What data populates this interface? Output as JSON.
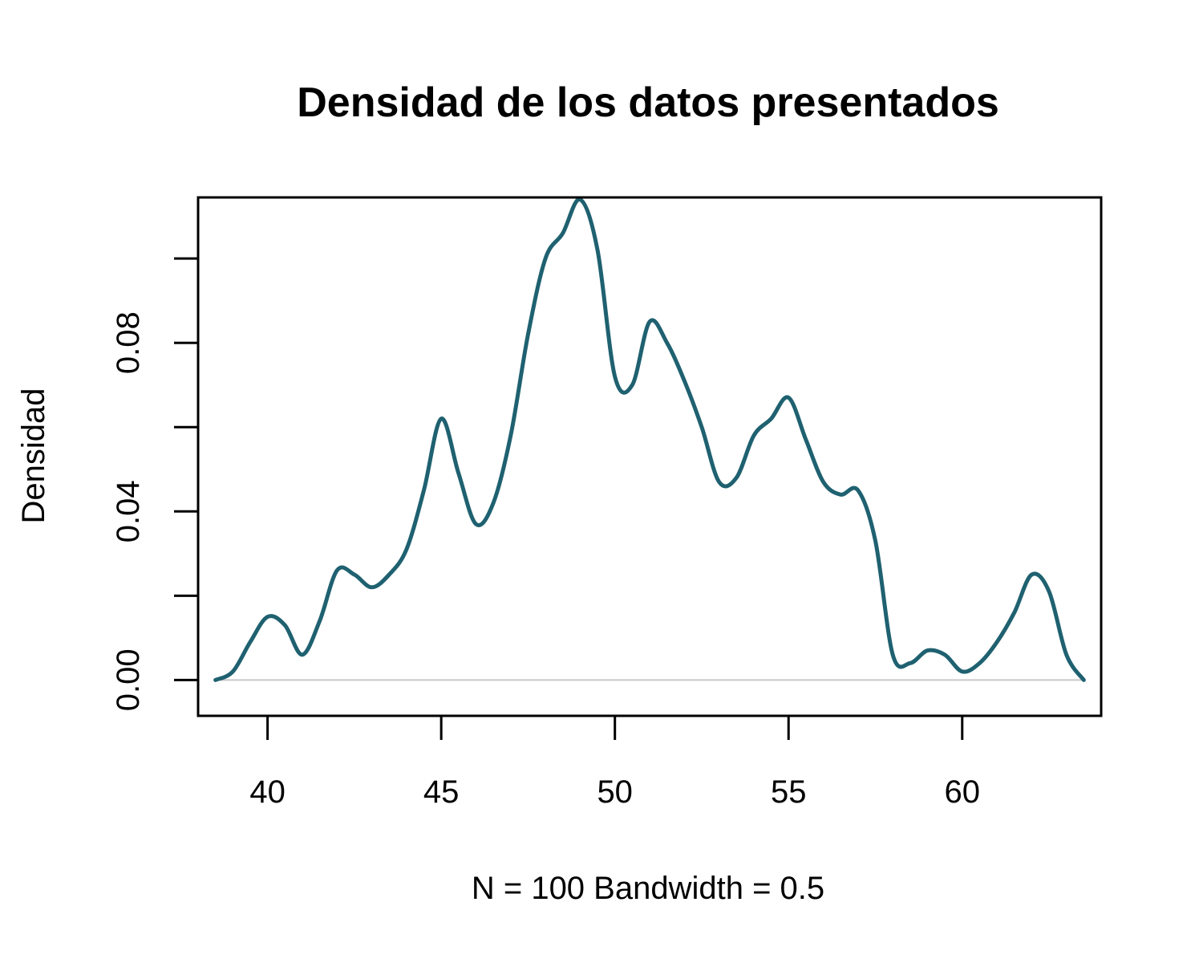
{
  "chart_data": {
    "type": "line",
    "title": "Densidad de los datos presentados",
    "xlabel": "N = 100   Bandwidth = 0.5",
    "ylabel": "Densidad",
    "xlim": [
      38.0,
      64.0
    ],
    "ylim": [
      -0.0085,
      0.1145
    ],
    "x_ticks": [
      40,
      45,
      50,
      55,
      60
    ],
    "x_tick_labels": [
      "40",
      "45",
      "50",
      "55",
      "60"
    ],
    "y_ticks": [
      0.0,
      0.02,
      0.04,
      0.06,
      0.08,
      0.1
    ],
    "y_tick_labels": [
      "0.00",
      "",
      "0.04",
      "",
      "0.08",
      ""
    ],
    "grid": false,
    "zero_line": true,
    "series": [
      {
        "color": "#1f6170",
        "x": [
          38.5,
          39.0,
          39.5,
          40.0,
          40.5,
          41.0,
          41.5,
          42.0,
          42.5,
          43.0,
          43.5,
          44.0,
          44.5,
          45.0,
          45.5,
          46.0,
          46.5,
          47.0,
          47.5,
          48.0,
          48.5,
          49.0,
          49.5,
          50.0,
          50.5,
          51.0,
          51.5,
          52.0,
          52.5,
          53.0,
          53.5,
          54.0,
          54.5,
          55.0,
          55.5,
          56.0,
          56.5,
          57.0,
          57.5,
          58.0,
          58.5,
          59.0,
          59.5,
          60.0,
          60.5,
          61.0,
          61.5,
          62.0,
          62.5,
          63.0,
          63.5
        ],
        "y": [
          0.0,
          0.002,
          0.009,
          0.015,
          0.013,
          0.006,
          0.014,
          0.026,
          0.025,
          0.022,
          0.025,
          0.031,
          0.045,
          0.062,
          0.049,
          0.037,
          0.042,
          0.058,
          0.082,
          0.1,
          0.106,
          0.114,
          0.102,
          0.072,
          0.07,
          0.085,
          0.08,
          0.071,
          0.06,
          0.047,
          0.048,
          0.058,
          0.062,
          0.067,
          0.057,
          0.047,
          0.044,
          0.045,
          0.033,
          0.006,
          0.004,
          0.007,
          0.006,
          0.002,
          0.004,
          0.009,
          0.016,
          0.025,
          0.021,
          0.006,
          0.0
        ]
      }
    ]
  }
}
